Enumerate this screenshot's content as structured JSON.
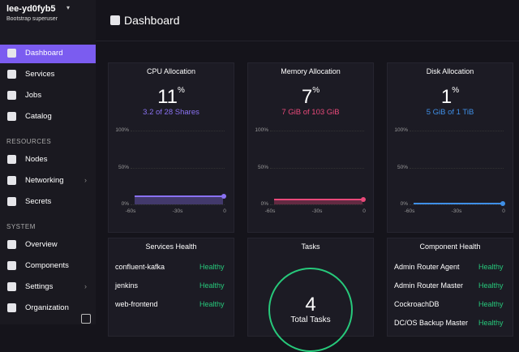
{
  "sidebar": {
    "cluster": "lee-yd0fyb5",
    "role": "Bootstrap superuser",
    "main_nav": [
      "Dashboard",
      "Services",
      "Jobs",
      "Catalog"
    ],
    "sections": [
      {
        "heading": "RESOURCES",
        "items": [
          "Nodes",
          "Networking",
          "Secrets"
        ]
      },
      {
        "heading": "SYSTEM",
        "items": [
          "Overview",
          "Components",
          "Settings",
          "Organization"
        ]
      }
    ]
  },
  "header": {
    "title": "Dashboard"
  },
  "allocation_cards": [
    {
      "title": "CPU Allocation",
      "value": 11,
      "unit": "%",
      "detail": "3.2 of 28 Shares",
      "color": "#8a72f2",
      "yticks": [
        "100%",
        "50%",
        "0%"
      ],
      "xticks": [
        "-60s",
        "-30s",
        "0"
      ]
    },
    {
      "title": "Memory Allocation",
      "value": 7,
      "unit": "%",
      "detail": "7 GiB of 103 GiB",
      "color": "#e8497a",
      "yticks": [
        "100%",
        "50%",
        "0%"
      ],
      "xticks": [
        "-60s",
        "-30s",
        "0"
      ]
    },
    {
      "title": "Disk Allocation",
      "value": 1,
      "unit": "%",
      "detail": "5 GiB of 1 TiB",
      "color": "#3f8fe6",
      "yticks": [
        "100%",
        "50%",
        "0%"
      ],
      "xticks": [
        "-60s",
        "-30s",
        "0"
      ]
    }
  ],
  "services_health": {
    "title": "Services Health",
    "rows": [
      [
        "confluent-kafka",
        "Healthy"
      ],
      [
        "jenkins",
        "Healthy"
      ],
      [
        "web-frontend",
        "Healthy"
      ]
    ]
  },
  "tasks": {
    "title": "Tasks",
    "count": "4",
    "label": "Total Tasks"
  },
  "component_health": {
    "title": "Component Health",
    "rows": [
      [
        "Admin Router Agent",
        "Healthy"
      ],
      [
        "Admin Router Master",
        "Healthy"
      ],
      [
        "CockroachDB",
        "Healthy"
      ],
      [
        "DC/OS Backup Master",
        "Healthy"
      ]
    ]
  }
}
